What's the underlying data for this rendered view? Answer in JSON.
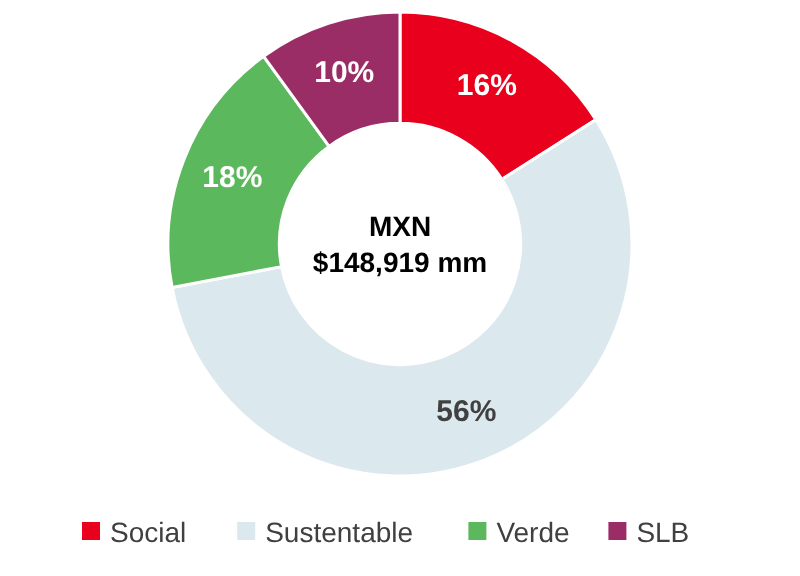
{
  "chart_data": {
    "type": "donut",
    "categories": [
      "Social",
      "Sustentable",
      "Verde",
      "SLB"
    ],
    "values": [
      16,
      56,
      18,
      10
    ],
    "colors": [
      "#e8001c",
      "#dbe8ee",
      "#5cb85c",
      "#9b2d66"
    ],
    "value_labels": [
      "16%",
      "56%",
      "18%",
      "10%"
    ],
    "annotations": [
      "MXN",
      "$148,919 mm"
    ],
    "legend": "bottom"
  }
}
